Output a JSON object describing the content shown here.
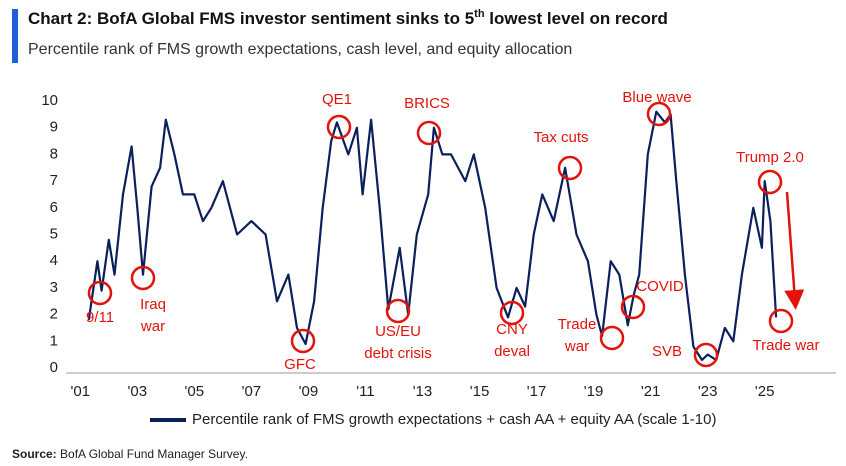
{
  "chart_data": {
    "type": "line",
    "title": [
      "Chart 2: BofA Global FMS investor sentiment sinks to 5",
      "th",
      " lowest level on record"
    ],
    "subtitle": "Percentile rank of FMS growth expectations, cash level, and equity allocation",
    "source": {
      "label": "Source:",
      "text": "BofA Global Fund Manager Survey."
    },
    "xlim": [
      2000.5,
      2027.5
    ],
    "xticks": [
      {
        "value": 2001,
        "label": "'01"
      },
      {
        "value": 2003,
        "label": "'03"
      },
      {
        "value": 2005,
        "label": "'05"
      },
      {
        "value": 2007,
        "label": "'07"
      },
      {
        "value": 2009,
        "label": "'09"
      },
      {
        "value": 2011,
        "label": "'11"
      },
      {
        "value": 2013,
        "label": "'13"
      },
      {
        "value": 2015,
        "label": "'15"
      },
      {
        "value": 2017,
        "label": "'17"
      },
      {
        "value": 2019,
        "label": "'19"
      },
      {
        "value": 2021,
        "label": "'21"
      },
      {
        "value": 2023,
        "label": "'23"
      },
      {
        "value": 2025,
        "label": "'25"
      }
    ],
    "ylim": [
      0,
      10
    ],
    "yticks": [
      0,
      1,
      2,
      3,
      4,
      5,
      6,
      7,
      8,
      9,
      10
    ],
    "grid": false,
    "legend": "bottom",
    "x": [
      2001.3,
      2001.6,
      2001.75,
      2002.0,
      2002.2,
      2002.5,
      2002.8,
      2003.0,
      2003.2,
      2003.5,
      2003.8,
      2004.0,
      2004.3,
      2004.6,
      2005.0,
      2005.3,
      2005.6,
      2006.0,
      2006.5,
      2007.0,
      2007.5,
      2007.9,
      2008.3,
      2008.6,
      2008.9,
      2009.2,
      2009.5,
      2009.8,
      2010.0,
      2010.4,
      2010.7,
      2010.9,
      2011.2,
      2011.5,
      2011.8,
      2012.2,
      2012.5,
      2012.8,
      2013.2,
      2013.4,
      2013.7,
      2014.0,
      2014.5,
      2014.8,
      2015.2,
      2015.6,
      2016.0,
      2016.3,
      2016.6,
      2016.9,
      2017.2,
      2017.6,
      2018.0,
      2018.4,
      2018.8,
      2019.1,
      2019.3,
      2019.6,
      2019.9,
      2020.2,
      2020.4,
      2020.6,
      2020.9,
      2021.2,
      2021.5,
      2021.7,
      2021.9,
      2022.2,
      2022.5,
      2022.8,
      2023.0,
      2023.3,
      2023.6,
      2023.9,
      2024.2,
      2024.6,
      2024.9,
      2025.0,
      2025.2,
      2025.4
    ],
    "series": [
      {
        "name": "Percentile rank of FMS growth expectations + cash AA + equity AA (scale 1-10)",
        "color": "#0b1f5c",
        "values": [
          1.8,
          4.0,
          2.9,
          4.8,
          3.5,
          6.5,
          8.3,
          6.0,
          3.5,
          6.8,
          7.5,
          9.3,
          8.0,
          6.5,
          6.5,
          5.5,
          6.0,
          7.0,
          5.0,
          5.5,
          5.0,
          2.5,
          3.5,
          1.5,
          0.9,
          2.5,
          6.0,
          8.5,
          9.2,
          8.0,
          9.0,
          6.5,
          9.3,
          6.0,
          2.2,
          4.5,
          2.0,
          5.0,
          6.5,
          9.0,
          8.0,
          8.0,
          7.0,
          8.0,
          6.0,
          3.0,
          1.9,
          3.0,
          2.3,
          5.0,
          6.5,
          5.5,
          7.5,
          5.0,
          4.0,
          2.0,
          1.2,
          4.0,
          3.5,
          1.6,
          2.7,
          3.5,
          8.0,
          9.6,
          9.2,
          9.5,
          7.0,
          3.5,
          0.8,
          0.3,
          0.5,
          0.3,
          1.5,
          1.0,
          3.5,
          6.0,
          4.5,
          7.0,
          5.5,
          1.9
        ]
      }
    ],
    "annotations": [
      [
        "9/11"
      ],
      [
        "Iraq",
        "war"
      ],
      [
        "GFC"
      ],
      [
        "QE1"
      ],
      [
        "US/EU",
        "debt crisis"
      ],
      [
        "BRICS"
      ],
      [
        "CNY",
        "deval"
      ],
      [
        "Tax cuts"
      ],
      [
        "Trade",
        "war"
      ],
      [
        "COVID"
      ],
      [
        "SVB"
      ],
      [
        "Blue wave"
      ],
      [
        "Trump 2.0"
      ],
      [
        "Trade war"
      ]
    ]
  }
}
